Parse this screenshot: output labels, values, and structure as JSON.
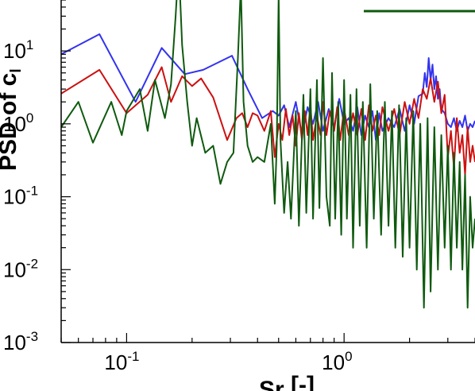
{
  "chart_data": {
    "type": "line",
    "x_scale": "log",
    "y_scale": "log",
    "xlim": [
      0.05,
      4.0
    ],
    "ylim": [
      0.001,
      50
    ],
    "x_ticks": [
      {
        "value": 0.1,
        "base": "10",
        "exp": "-1"
      },
      {
        "value": 1.0,
        "base": "10",
        "exp": "0"
      }
    ],
    "y_ticks": [
      {
        "value": 0.001,
        "base": "10",
        "exp": "-3"
      },
      {
        "value": 0.01,
        "base": "10",
        "exp": "-2"
      },
      {
        "value": 0.1,
        "base": "10",
        "exp": "-1"
      },
      {
        "value": 1.0,
        "base": "10",
        "exp": "0"
      },
      {
        "value": 10.0,
        "base": "10",
        "exp": "1"
      }
    ],
    "xlabel": {
      "main": "Sr",
      "sub": "",
      "rest": " [-]"
    },
    "ylabel": {
      "main": "PSD of c",
      "sub": "l"
    },
    "grid": false,
    "legend": "top-right, partially cut off",
    "series": [
      {
        "color": "#3333ee",
        "x": [
          0.05,
          0.075,
          0.11,
          0.145,
          0.185,
          0.225,
          0.305,
          0.36,
          0.42,
          0.47,
          0.5,
          0.53,
          0.56,
          0.6,
          0.64,
          0.68,
          0.72,
          0.76,
          0.8,
          0.85,
          0.9,
          0.95,
          1.0,
          1.05,
          1.1,
          1.15,
          1.2,
          1.25,
          1.3,
          1.35,
          1.4,
          1.45,
          1.5,
          1.6,
          1.7,
          1.8,
          1.9,
          2.0,
          2.1,
          2.2,
          2.3,
          2.35,
          2.4,
          2.45,
          2.5,
          2.55,
          2.6,
          2.65,
          2.7,
          2.75,
          2.8,
          2.9,
          3.0,
          3.1,
          3.2,
          3.3,
          3.4,
          3.5,
          3.6,
          3.7,
          3.8,
          3.9,
          4.0
        ],
        "y": [
          9,
          17,
          2.0,
          11,
          4.8,
          5.5,
          8.6,
          3.0,
          1.2,
          1.5,
          1.3,
          1.8,
          0.9,
          2.0,
          0.7,
          1.7,
          1.0,
          2.0,
          0.8,
          1.6,
          0.9,
          2.2,
          1.0,
          1.2,
          0.8,
          1.7,
          0.7,
          1.3,
          0.9,
          1.5,
          0.6,
          1.4,
          0.8,
          1.2,
          0.9,
          1.6,
          0.8,
          1.8,
          1.0,
          2.4,
          2.6,
          5.0,
          3.2,
          8.0,
          4.0,
          6.5,
          3.0,
          4.5,
          2.2,
          3.0,
          1.6,
          1.4,
          1.0,
          0.9,
          1.2,
          0.8,
          1.1,
          0.9,
          1.3,
          0.8,
          1.0,
          0.9,
          1.1
        ]
      },
      {
        "color": "#cc1111",
        "x": [
          0.05,
          0.075,
          0.1,
          0.125,
          0.145,
          0.16,
          0.18,
          0.2,
          0.22,
          0.25,
          0.29,
          0.32,
          0.34,
          0.36,
          0.38,
          0.4,
          0.43,
          0.46,
          0.48,
          0.5,
          0.52,
          0.54,
          0.56,
          0.58,
          0.6,
          0.62,
          0.64,
          0.66,
          0.68,
          0.7,
          0.72,
          0.75,
          0.78,
          0.8,
          0.83,
          0.86,
          0.9,
          0.93,
          0.96,
          1.0,
          1.05,
          1.1,
          1.15,
          1.2,
          1.25,
          1.3,
          1.35,
          1.4,
          1.45,
          1.5,
          1.6,
          1.7,
          1.8,
          1.9,
          2.0,
          2.1,
          2.2,
          2.3,
          2.4,
          2.5,
          2.6,
          2.7,
          2.8,
          2.9,
          3.0,
          3.1,
          3.2,
          3.3,
          3.4,
          3.5,
          3.6,
          3.7,
          3.8,
          3.9,
          4.0
        ],
        "y": [
          2.6,
          5.5,
          1.4,
          2.5,
          6.0,
          2.0,
          4.5,
          3.3,
          4.2,
          2.3,
          0.6,
          1.2,
          1.4,
          0.9,
          1.4,
          1.3,
          0.8,
          1.5,
          0.35,
          1.0,
          0.6,
          1.6,
          0.7,
          1.3,
          0.5,
          1.4,
          0.6,
          1.5,
          0.7,
          1.8,
          0.6,
          1.3,
          0.7,
          2.0,
          0.7,
          1.5,
          0.8,
          1.7,
          0.6,
          1.6,
          0.7,
          1.4,
          0.7,
          1.6,
          0.6,
          1.8,
          0.8,
          1.3,
          0.7,
          1.7,
          0.8,
          1.6,
          0.7,
          2.0,
          1.0,
          2.2,
          1.2,
          3.0,
          2.2,
          4.2,
          2.0,
          3.8,
          1.4,
          2.5,
          0.35,
          0.8,
          0.25,
          1.2,
          0.4,
          0.7,
          0.2,
          0.9,
          0.3,
          0.5,
          0.3
        ]
      },
      {
        "color": "#0f5a0f",
        "x": [
          0.05,
          0.06,
          0.07,
          0.085,
          0.095,
          0.1,
          0.115,
          0.125,
          0.135,
          0.15,
          0.16,
          0.168,
          0.172,
          0.176,
          0.18,
          0.19,
          0.2,
          0.21,
          0.23,
          0.25,
          0.27,
          0.29,
          0.31,
          0.325,
          0.335,
          0.345,
          0.36,
          0.38,
          0.4,
          0.43,
          0.46,
          0.48,
          0.49,
          0.5,
          0.51,
          0.53,
          0.55,
          0.57,
          0.6,
          0.62,
          0.65,
          0.67,
          0.7,
          0.72,
          0.75,
          0.77,
          0.8,
          0.83,
          0.86,
          0.88,
          0.91,
          0.94,
          0.97,
          1.0,
          1.03,
          1.07,
          1.1,
          1.14,
          1.18,
          1.22,
          1.27,
          1.32,
          1.37,
          1.42,
          1.48,
          1.54,
          1.6,
          1.66,
          1.72,
          1.79,
          1.86,
          1.93,
          2.0,
          2.08,
          2.16,
          2.24,
          2.33,
          2.42,
          2.5,
          2.6,
          2.7,
          2.8,
          2.9,
          3.0,
          3.1,
          3.2,
          3.3,
          3.4,
          3.5,
          3.6,
          3.7,
          3.8,
          3.9,
          4.0
        ],
        "y": [
          0.9,
          2.0,
          0.55,
          2.0,
          0.7,
          1.5,
          3.0,
          0.8,
          4.0,
          1.2,
          3.5,
          30,
          100,
          60,
          12,
          2.0,
          0.5,
          1.2,
          0.4,
          0.5,
          0.15,
          0.3,
          0.4,
          8.0,
          80,
          2.0,
          0.5,
          0.3,
          0.35,
          0.3,
          1.0,
          0.08,
          0.5,
          60,
          0.6,
          0.06,
          0.3,
          0.05,
          1.5,
          0.04,
          2.5,
          0.06,
          3.0,
          0.05,
          4.0,
          0.07,
          8.0,
          0.1,
          0.04,
          5.0,
          0.05,
          2.0,
          0.03,
          4.0,
          0.05,
          2.5,
          0.02,
          3.0,
          0.04,
          2.0,
          0.02,
          3.5,
          0.05,
          1.5,
          0.03,
          2.0,
          0.04,
          1.5,
          0.02,
          1.8,
          0.015,
          1.2,
          0.02,
          1.5,
          0.01,
          1.0,
          0.003,
          1.2,
          0.005,
          0.9,
          0.01,
          0.7,
          0.02,
          0.5,
          0.01,
          0.4,
          0.02,
          0.3,
          0.01,
          0.2,
          0.003,
          0.1,
          0.02,
          0.05
        ]
      }
    ]
  }
}
